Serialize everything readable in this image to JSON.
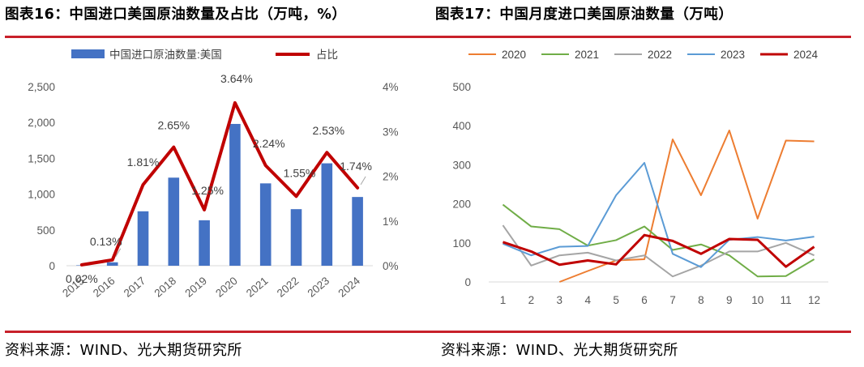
{
  "header": {
    "title_left": "图表16：中国进口美国原油数量及占比（万吨，%）",
    "title_right": "图表17：中国月度进口美国原油数量（万吨）"
  },
  "footer": {
    "source_left": "资料来源：WIND、光大期货研究所",
    "source_right": "资料来源：WIND、光大期货研究所"
  },
  "colors": {
    "rule": "#c8202a"
  },
  "chart_data": [
    {
      "type": "bar",
      "categories": [
        "2015",
        "2016",
        "2017",
        "2018",
        "2019",
        "2020",
        "2021",
        "2022",
        "2023",
        "2024"
      ],
      "series": [
        {
          "name": "中国进口原油数量:美国",
          "kind": "bar",
          "axis": "left",
          "color": "#4472c4",
          "values": [
            6,
            48,
            760,
            1230,
            635,
            1980,
            1150,
            790,
            1430,
            960
          ]
        },
        {
          "name": "占比",
          "kind": "line",
          "axis": "right",
          "color": "#c00000",
          "values": [
            0.02,
            0.13,
            1.81,
            2.65,
            1.25,
            3.64,
            2.24,
            1.55,
            2.53,
            1.74
          ],
          "labels": [
            "0.02%",
            "0.13%",
            "1.81%",
            "2.65%",
            "1.25%",
            "3.64%",
            "2.24%",
            "1.55%",
            "2.53%",
            "1.74%"
          ]
        }
      ],
      "left_axis": {
        "ylim": [
          0,
          2500
        ],
        "ticks": [
          0,
          500,
          1000,
          1500,
          2000,
          2500
        ],
        "tick_labels": [
          "0",
          "500",
          "1,000",
          "1,500",
          "2,000",
          "2,500"
        ]
      },
      "right_axis": {
        "ylim": [
          0,
          4
        ],
        "ticks": [
          0,
          1,
          2,
          3,
          4
        ],
        "tick_labels": [
          "0%",
          "1%",
          "2%",
          "3%",
          "4%"
        ]
      },
      "grid": false,
      "legend": "top"
    },
    {
      "type": "line",
      "x": [
        1,
        2,
        3,
        4,
        5,
        6,
        7,
        8,
        9,
        10,
        11,
        12
      ],
      "series": [
        {
          "name": "2020",
          "color": "#ed7d31",
          "values": [
            null,
            null,
            0,
            28,
            55,
            58,
            365,
            222,
            388,
            162,
            362,
            360
          ]
        },
        {
          "name": "2021",
          "color": "#70ad47",
          "values": [
            198,
            142,
            135,
            93,
            107,
            142,
            82,
            96,
            68,
            14,
            15,
            58
          ]
        },
        {
          "name": "2022",
          "color": "#a5a5a5",
          "values": [
            145,
            42,
            68,
            75,
            55,
            68,
            14,
            42,
            78,
            78,
            100,
            68
          ]
        },
        {
          "name": "2023",
          "color": "#5b9bd5",
          "values": [
            98,
            68,
            90,
            92,
            222,
            305,
            72,
            38,
            108,
            115,
            106,
            116
          ]
        },
        {
          "name": "2024",
          "color": "#c00000",
          "values": [
            102,
            78,
            44,
            55,
            45,
            120,
            105,
            72,
            110,
            108,
            39,
            90
          ]
        }
      ],
      "ylim": [
        0,
        500
      ],
      "yticks": [
        0,
        100,
        200,
        300,
        400,
        500
      ],
      "grid": false,
      "legend": "top"
    }
  ]
}
